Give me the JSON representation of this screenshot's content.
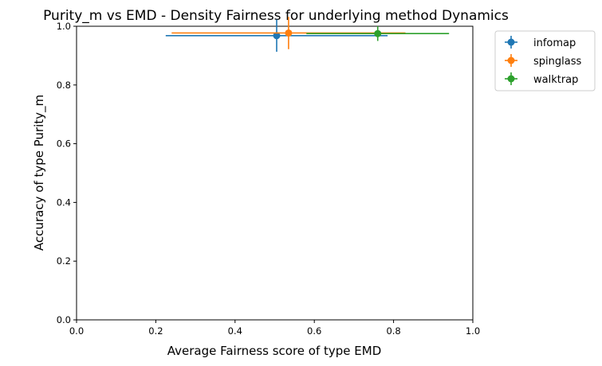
{
  "chart_data": {
    "type": "scatter",
    "title": "Purity_m vs EMD - Density Fairness for underlying method Dynamics",
    "xlabel": "Average Fairness score of type EMD",
    "ylabel": "Accuracy of type Purity_m",
    "xlim": [
      0.0,
      1.0
    ],
    "ylim": [
      0.0,
      1.0
    ],
    "xticks": [
      "0.0",
      "0.2",
      "0.4",
      "0.6",
      "0.8",
      "1.0"
    ],
    "yticks": [
      "0.0",
      "0.2",
      "0.4",
      "0.6",
      "0.8",
      "1.0"
    ],
    "grid": false,
    "legend_position": "outside-top-right",
    "series": [
      {
        "name": "infomap",
        "color": "#1f77b4",
        "x": 0.505,
        "y": 0.968,
        "xerr": 0.28,
        "yerr": 0.055
      },
      {
        "name": "spinglass",
        "color": "#ff7f0e",
        "x": 0.535,
        "y": 0.977,
        "xerr": 0.295,
        "yerr": 0.055
      },
      {
        "name": "walktrap",
        "color": "#2ca02c",
        "x": 0.76,
        "y": 0.975,
        "xerr": 0.18,
        "yerr": 0.025
      }
    ]
  }
}
